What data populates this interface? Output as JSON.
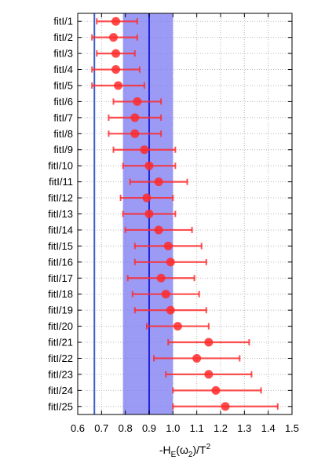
{
  "chart_data": {
    "type": "scatter",
    "orientation": "horizontal-errorbar",
    "xlabel": {
      "main": "-H",
      "sub": "E",
      "paren": "(ω",
      "sub2": "2",
      "tail": ")/T",
      "sup": "2"
    },
    "xlim": [
      0.6,
      1.5
    ],
    "xticks": [
      0.6,
      0.7,
      0.8,
      0.9,
      1.0,
      1.1,
      1.2,
      1.3,
      1.4,
      1.5
    ],
    "xtick_labels": [
      "0.6",
      "0.7",
      "0.8",
      "0.9",
      "1.0",
      "1.1",
      "1.2",
      "1.3",
      "1.4",
      "1.5"
    ],
    "grid": true,
    "band": {
      "low": 0.79,
      "high": 1.0,
      "center": 0.9,
      "color": "#7f7ff2"
    },
    "reference_line": {
      "value": 0.67,
      "color": "#3a5fc8"
    },
    "point_color": "#ff2a2a",
    "categories": [
      "fitI/1",
      "fitI/2",
      "fitI/3",
      "fitI/4",
      "fitI/5",
      "fitI/6",
      "fitI/7",
      "fitI/8",
      "fitI/9",
      "fitI/10",
      "fitI/11",
      "fitI/12",
      "fitI/13",
      "fitI/14",
      "fitI/15",
      "fitI/16",
      "fitI/17",
      "fitI/18",
      "fitI/19",
      "fitI/20",
      "fitI/21",
      "fitI/22",
      "fitI/23",
      "fitI/24",
      "fitI/25"
    ],
    "values": [
      0.76,
      0.75,
      0.76,
      0.76,
      0.77,
      0.85,
      0.84,
      0.84,
      0.88,
      0.9,
      0.94,
      0.89,
      0.9,
      0.94,
      0.98,
      0.99,
      0.95,
      0.97,
      0.99,
      1.02,
      1.15,
      1.1,
      1.15,
      1.18,
      1.22
    ],
    "err_low": [
      0.68,
      0.66,
      0.68,
      0.66,
      0.66,
      0.75,
      0.73,
      0.73,
      0.75,
      0.79,
      0.82,
      0.78,
      0.79,
      0.8,
      0.84,
      0.84,
      0.81,
      0.83,
      0.84,
      0.89,
      0.98,
      0.92,
      0.97,
      1.0,
      1.0
    ],
    "err_high": [
      0.85,
      0.85,
      0.84,
      0.86,
      0.88,
      0.95,
      0.95,
      0.95,
      1.01,
      1.01,
      1.06,
      1.0,
      1.01,
      1.08,
      1.12,
      1.14,
      1.09,
      1.11,
      1.14,
      1.15,
      1.32,
      1.28,
      1.33,
      1.37,
      1.44
    ]
  }
}
